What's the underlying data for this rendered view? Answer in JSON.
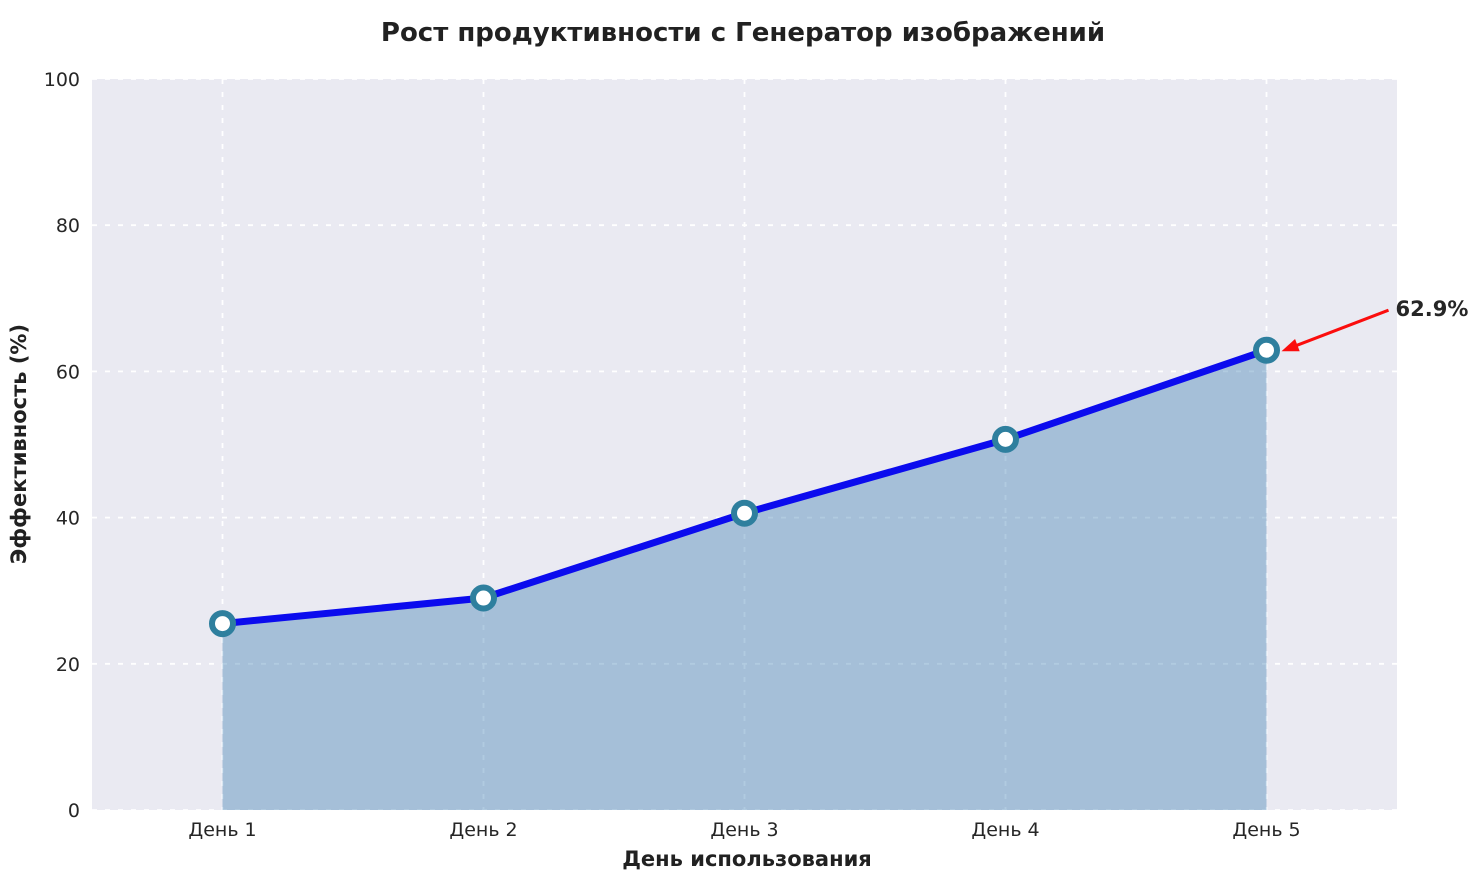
{
  "chart_data": {
    "type": "area",
    "title": "Рост продуктивности с Генератор изображений",
    "xlabel": "День использования",
    "ylabel": "Эффективность (%)",
    "categories": [
      "День 1",
      "День 2",
      "День 3",
      "День 4",
      "День 5"
    ],
    "values": [
      25.5,
      29.0,
      40.6,
      50.7,
      62.9
    ],
    "ylim": [
      0,
      100
    ],
    "yticks": [
      0,
      20,
      40,
      60,
      80,
      100
    ],
    "grid": true,
    "grid_style": "dashed",
    "legend": "none",
    "annotation": {
      "text": "62.9%",
      "point_index": 4
    },
    "colors": {
      "line": "#0b0bee",
      "marker_fill": "#ffffff",
      "marker_edge": "#2e7f9e",
      "area_fill": "rgba(70,130,180,0.42)",
      "plot_background": "#eaeaf2",
      "grid": "#ffffff",
      "arrow": "#fb0d0d",
      "text": "#262626",
      "title_text": "#212121"
    }
  }
}
